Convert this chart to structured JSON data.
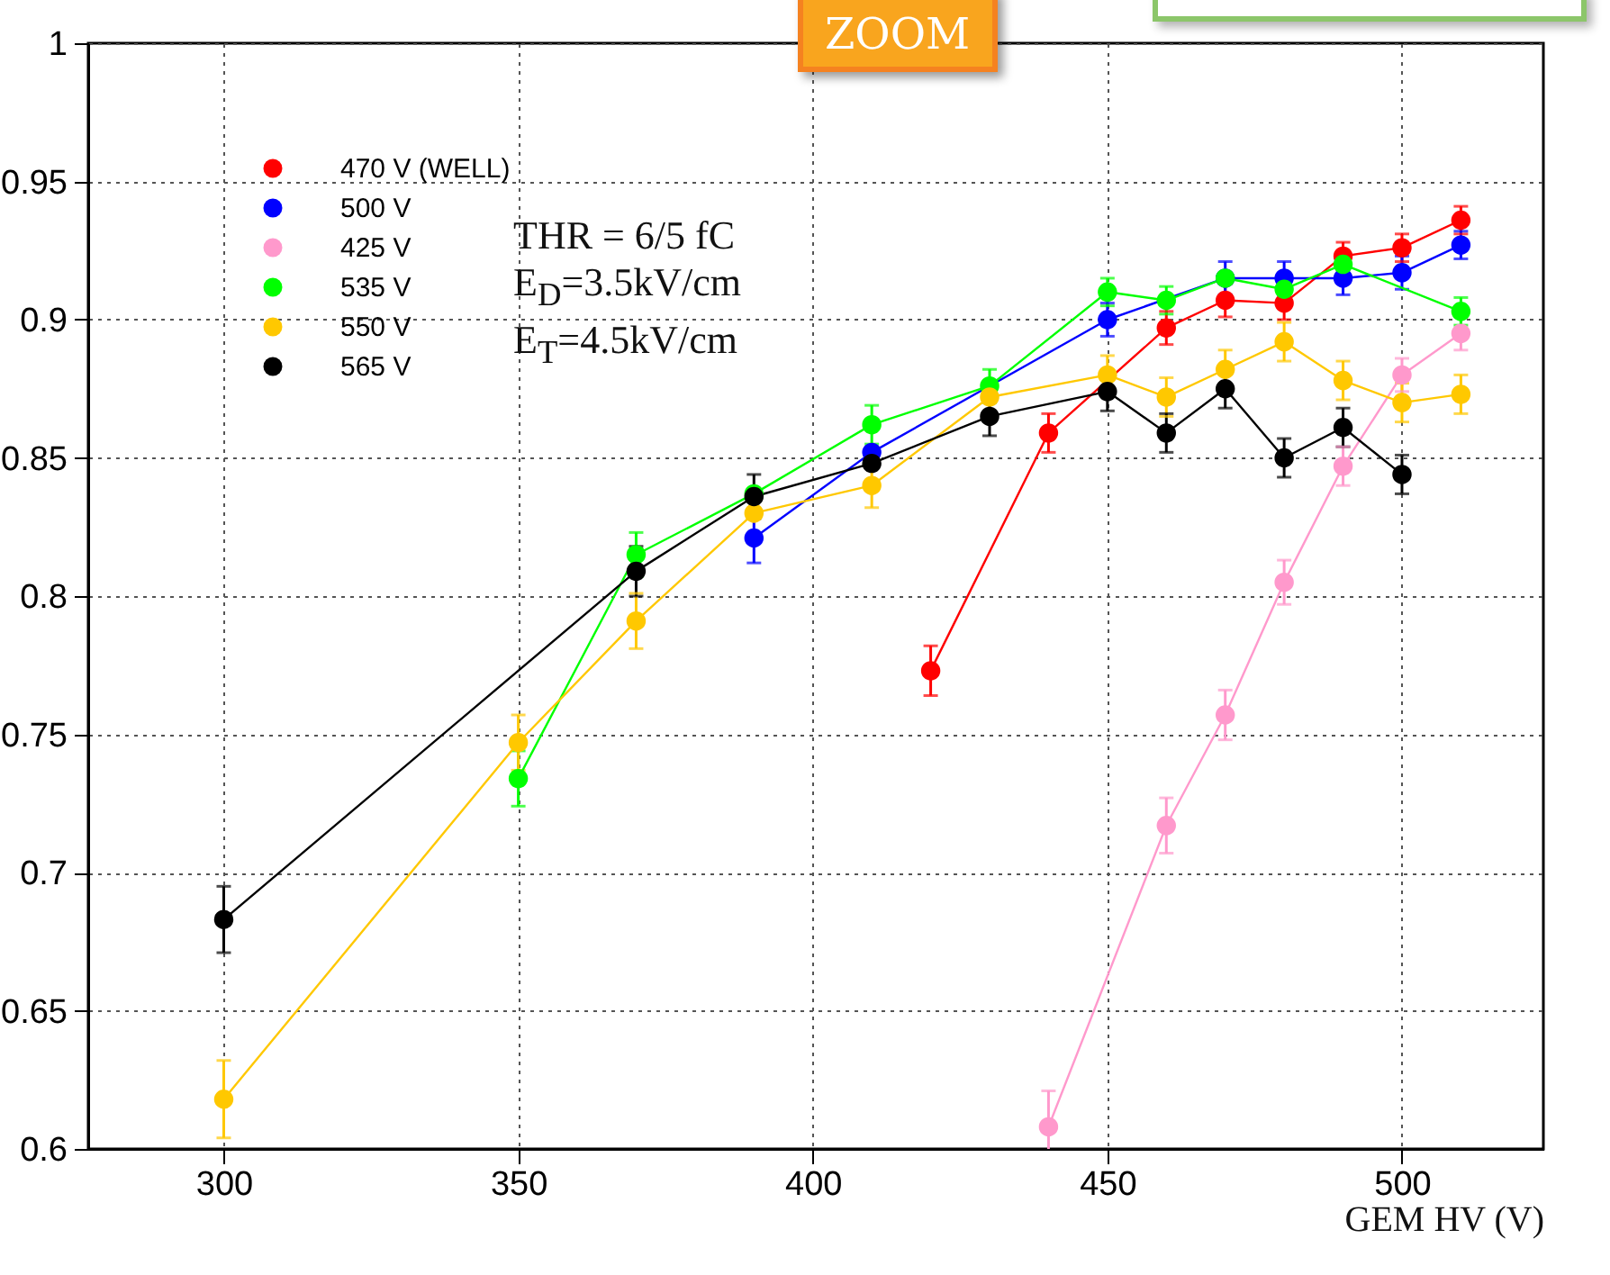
{
  "chart_data": {
    "type": "line",
    "xlabel": "GEM HV (V)",
    "xlim": [
      277,
      524
    ],
    "xticks": [
      300,
      350,
      400,
      450,
      500
    ],
    "ylim": [
      0.6,
      1
    ],
    "yticks": [
      0.6,
      0.65,
      0.7,
      0.75,
      0.8,
      0.85,
      0.9,
      0.95,
      1
    ],
    "grid": true,
    "legend": "top left",
    "marker": "circle",
    "line_style": "solid",
    "annotations": [
      "ZOOM",
      "THR = 6/5 fC",
      "E$_{D}$=3.5kV/cm",
      "E$_{T}$=4.5kV/cm"
    ],
    "series": [
      {
        "name": "470 V (WELL)",
        "color": "#ff0000",
        "x": [
          420,
          440,
          460,
          470,
          480,
          490,
          500,
          510
        ],
        "values": [
          0.773,
          0.859,
          0.897,
          0.907,
          0.906,
          0.923,
          0.926,
          0.936
        ],
        "errors": [
          0.009,
          0.007,
          0.006,
          0.006,
          0.006,
          0.005,
          0.005,
          0.005
        ]
      },
      {
        "name": "500 V",
        "color": "#0000ff",
        "x": [
          390,
          410,
          450,
          470,
          480,
          490,
          500,
          510
        ],
        "values": [
          0.821,
          0.852,
          0.9,
          0.915,
          0.915,
          0.915,
          0.917,
          0.927
        ],
        "errors": [
          0.009,
          null,
          0.006,
          0.006,
          0.006,
          0.006,
          0.006,
          0.005
        ]
      },
      {
        "name": "425 V",
        "color": "#ff99cc",
        "x": [
          440,
          460,
          470,
          480,
          490,
          500,
          510
        ],
        "values": [
          0.608,
          0.717,
          0.757,
          0.805,
          0.847,
          0.88,
          0.895
        ],
        "errors": [
          0.013,
          0.01,
          0.009,
          0.008,
          0.007,
          0.006,
          0.006
        ]
      },
      {
        "name": "535 V",
        "color": "#00ff00",
        "x": [
          350,
          370,
          390,
          410,
          430,
          450,
          460,
          470,
          480,
          490,
          510
        ],
        "values": [
          0.734,
          0.815,
          0.837,
          0.862,
          0.876,
          0.91,
          0.907,
          0.915,
          0.911,
          0.92,
          0.903
        ],
        "errors": [
          0.01,
          0.008,
          null,
          0.007,
          0.006,
          0.005,
          0.005,
          null,
          null,
          null,
          0.005
        ]
      },
      {
        "name": "550 V",
        "color": "#ffc800",
        "x": [
          300,
          350,
          370,
          390,
          410,
          430,
          450,
          460,
          470,
          480,
          490,
          500,
          510
        ],
        "values": [
          0.618,
          0.747,
          0.791,
          0.83,
          0.84,
          0.872,
          0.88,
          0.872,
          0.882,
          0.892,
          0.878,
          0.87,
          0.873
        ],
        "errors": [
          0.014,
          0.01,
          0.01,
          null,
          0.008,
          null,
          0.007,
          0.007,
          0.007,
          0.007,
          0.007,
          0.007,
          0.007
        ]
      },
      {
        "name": "565 V",
        "color": "#000000",
        "x": [
          300,
          370,
          390,
          410,
          430,
          450,
          460,
          470,
          480,
          490,
          500
        ],
        "values": [
          0.683,
          0.809,
          0.836,
          0.848,
          0.865,
          0.874,
          0.859,
          0.875,
          0.85,
          0.861,
          0.844
        ],
        "errors": [
          0.012,
          0.009,
          0.008,
          null,
          0.007,
          0.007,
          0.007,
          0.007,
          0.007,
          0.007,
          0.007
        ]
      }
    ]
  }
}
